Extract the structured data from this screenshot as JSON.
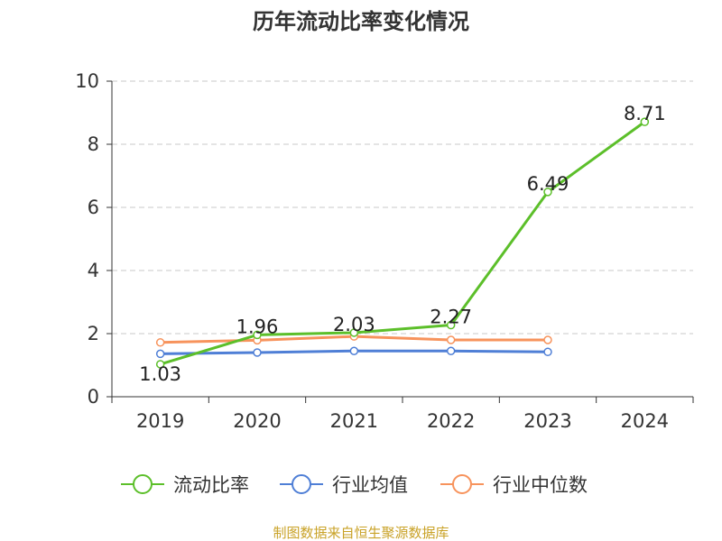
{
  "chart_data": {
    "type": "line",
    "title": "历年流动比率变化情况",
    "categories": [
      "2019",
      "2020",
      "2021",
      "2022",
      "2023",
      "2024"
    ],
    "ylim": [
      0,
      10
    ],
    "yticks": [
      0,
      2,
      4,
      6,
      8,
      10
    ],
    "grid": true,
    "legend_position": "bottom",
    "series": [
      {
        "name": "流动比率",
        "values": [
          1.03,
          1.96,
          2.03,
          2.27,
          6.49,
          8.71
        ],
        "color": "#5cbf2a",
        "labels": [
          "1.03",
          "1.96",
          "2.03",
          "2.27",
          "6.49",
          "8.71"
        ]
      },
      {
        "name": "行业均值",
        "values": [
          1.36,
          1.4,
          1.45,
          1.45,
          1.42,
          null
        ],
        "color": "#4f7fd6"
      },
      {
        "name": "行业中位数",
        "values": [
          1.72,
          1.79,
          1.91,
          1.8,
          1.8,
          null
        ],
        "color": "#f7935c"
      }
    ]
  },
  "source": {
    "text": "制图数据来自恒生聚源数据库",
    "color": "#c9a227"
  }
}
